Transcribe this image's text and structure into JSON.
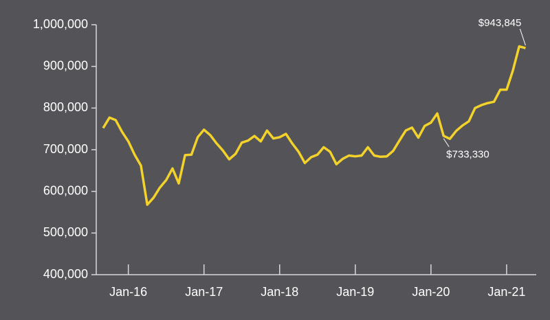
{
  "chart_data": {
    "type": "line",
    "categories": [
      null,
      null,
      null,
      null,
      "Jan-16",
      null,
      null,
      null,
      null,
      null,
      null,
      null,
      null,
      null,
      null,
      null,
      "Jan-17",
      null,
      null,
      null,
      null,
      null,
      null,
      null,
      null,
      null,
      null,
      null,
      "Jan-18",
      null,
      null,
      null,
      null,
      null,
      null,
      null,
      null,
      null,
      null,
      null,
      "Jan-19",
      null,
      null,
      null,
      null,
      null,
      null,
      null,
      null,
      null,
      null,
      null,
      "Jan-20",
      null,
      null,
      null,
      null,
      null,
      null,
      null,
      null,
      null,
      null,
      null,
      "Jan-21",
      null,
      null,
      null
    ],
    "series": [
      {
        "color": "#f2d22b",
        "values": [
          752000,
          777000,
          771000,
          743000,
          720000,
          688000,
          662000,
          568000,
          585000,
          609000,
          627000,
          655000,
          619000,
          687000,
          688000,
          730000,
          748000,
          735000,
          715000,
          698000,
          677000,
          690000,
          717000,
          722000,
          733000,
          720000,
          746000,
          727000,
          730000,
          738000,
          715000,
          695000,
          668000,
          682000,
          688000,
          706000,
          695000,
          665000,
          678000,
          686000,
          684000,
          686000,
          706000,
          686000,
          683000,
          684000,
          697000,
          722000,
          746000,
          753000,
          729000,
          757000,
          765000,
          787000,
          733330,
          726000,
          745000,
          758000,
          768000,
          800000,
          807000,
          812000,
          815000,
          844000,
          844000,
          890000,
          948000,
          943845
        ],
        "value_labels": [
          null,
          null,
          null,
          null,
          null,
          null,
          null,
          null,
          null,
          null,
          null,
          null,
          null,
          null,
          null,
          null,
          null,
          null,
          null,
          null,
          null,
          null,
          null,
          null,
          null,
          null,
          null,
          null,
          null,
          null,
          null,
          null,
          null,
          null,
          null,
          null,
          null,
          null,
          null,
          null,
          null,
          null,
          null,
          null,
          null,
          null,
          null,
          null,
          null,
          null,
          null,
          null,
          null,
          null,
          "$733,330",
          null,
          null,
          null,
          null,
          null,
          null,
          null,
          null,
          null,
          null,
          null,
          null,
          "$943,845"
        ]
      }
    ],
    "ylim": [
      400000,
      1000000
    ],
    "yticks": [
      {
        "value": 400000,
        "label": "400,000"
      },
      {
        "value": 500000,
        "label": "500,000"
      },
      {
        "value": 600000,
        "label": "600,000"
      },
      {
        "value": 700000,
        "label": "700,000"
      },
      {
        "value": 800000,
        "label": "800,000"
      },
      {
        "value": 900000,
        "label": "900,000"
      },
      {
        "value": 1000000,
        "label": "1,000,000"
      }
    ]
  }
}
